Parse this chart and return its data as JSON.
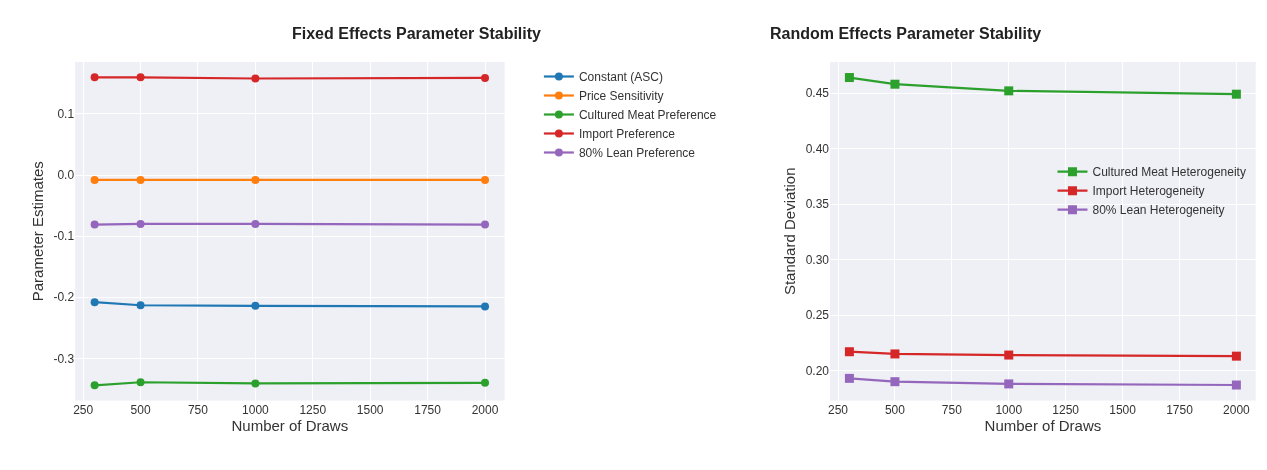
{
  "chart_data": [
    {
      "type": "line",
      "title": "Fixed Effects Parameter Stability",
      "xlabel": "Number of Draws",
      "ylabel": "Parameter Estimates",
      "x": [
        300,
        500,
        1000,
        2000
      ],
      "series": [
        {
          "name": "Constant (ASC)",
          "color": "#1f77b4",
          "values": [
            -0.208,
            -0.213,
            -0.214,
            -0.215
          ]
        },
        {
          "name": "Price Sensitivity",
          "color": "#ff7f0e",
          "values": [
            -0.008,
            -0.008,
            -0.008,
            -0.008
          ]
        },
        {
          "name": "Cultured Meat Preference",
          "color": "#2ca02c",
          "values": [
            -0.344,
            -0.339,
            -0.341,
            -0.34
          ]
        },
        {
          "name": "Import Preference",
          "color": "#d62728",
          "values": [
            0.16,
            0.16,
            0.158,
            0.159
          ]
        },
        {
          "name": "80% Lean Preference",
          "color": "#9467bd",
          "values": [
            -0.081,
            -0.08,
            -0.08,
            -0.081
          ]
        }
      ],
      "xlim": [
        215,
        2085
      ],
      "xticks": [
        250,
        500,
        750,
        1000,
        1250,
        1500,
        1750,
        2000
      ],
      "ylim": [
        -0.369,
        0.185
      ],
      "yticks": [
        {
          "value": -0.3,
          "label": "-0.3"
        },
        {
          "value": -0.2,
          "label": "-0.2"
        },
        {
          "value": -0.1,
          "label": "-0.1"
        },
        {
          "value": 0.0,
          "label": "0.0"
        },
        0.1
      ],
      "grid": true,
      "legend": "top right",
      "marker": "circle",
      "line_style": "solid"
    },
    {
      "type": "line",
      "title": "Random Effects Parameter Stability",
      "xlabel": "Number of Draws",
      "ylabel": "Standard Deviation",
      "x": [
        300,
        500,
        1000,
        2000
      ],
      "series": [
        {
          "name": "Cultured Meat Heterogeneity",
          "color": "#2ca02c",
          "values": [
            0.464,
            0.458,
            0.452,
            0.449
          ]
        },
        {
          "name": "Import Heterogeneity",
          "color": "#d62728",
          "values": [
            0.217,
            0.215,
            0.214,
            0.213
          ]
        },
        {
          "name": "80% Lean Heterogeneity",
          "color": "#9467bd",
          "values": [
            0.193,
            0.19,
            0.188,
            0.187
          ]
        }
      ],
      "xlim": [
        215,
        2085
      ],
      "xticks": [
        250,
        500,
        750,
        1000,
        1250,
        1500,
        1750,
        2000
      ],
      "ylim": [
        0.173,
        0.478
      ],
      "yticks": [
        {
          "value": 0.2,
          "label": "0.20"
        },
        {
          "value": 0.25,
          "label": "0.25"
        },
        {
          "value": 0.3,
          "label": "0.30"
        },
        {
          "value": 0.35,
          "label": "0.35"
        },
        {
          "value": 0.4,
          "label": "0.40"
        },
        {
          "value": 0.45,
          "label": "0.45"
        }
      ],
      "grid": true,
      "legend": "right",
      "marker": "square",
      "line_style": "solid"
    }
  ]
}
